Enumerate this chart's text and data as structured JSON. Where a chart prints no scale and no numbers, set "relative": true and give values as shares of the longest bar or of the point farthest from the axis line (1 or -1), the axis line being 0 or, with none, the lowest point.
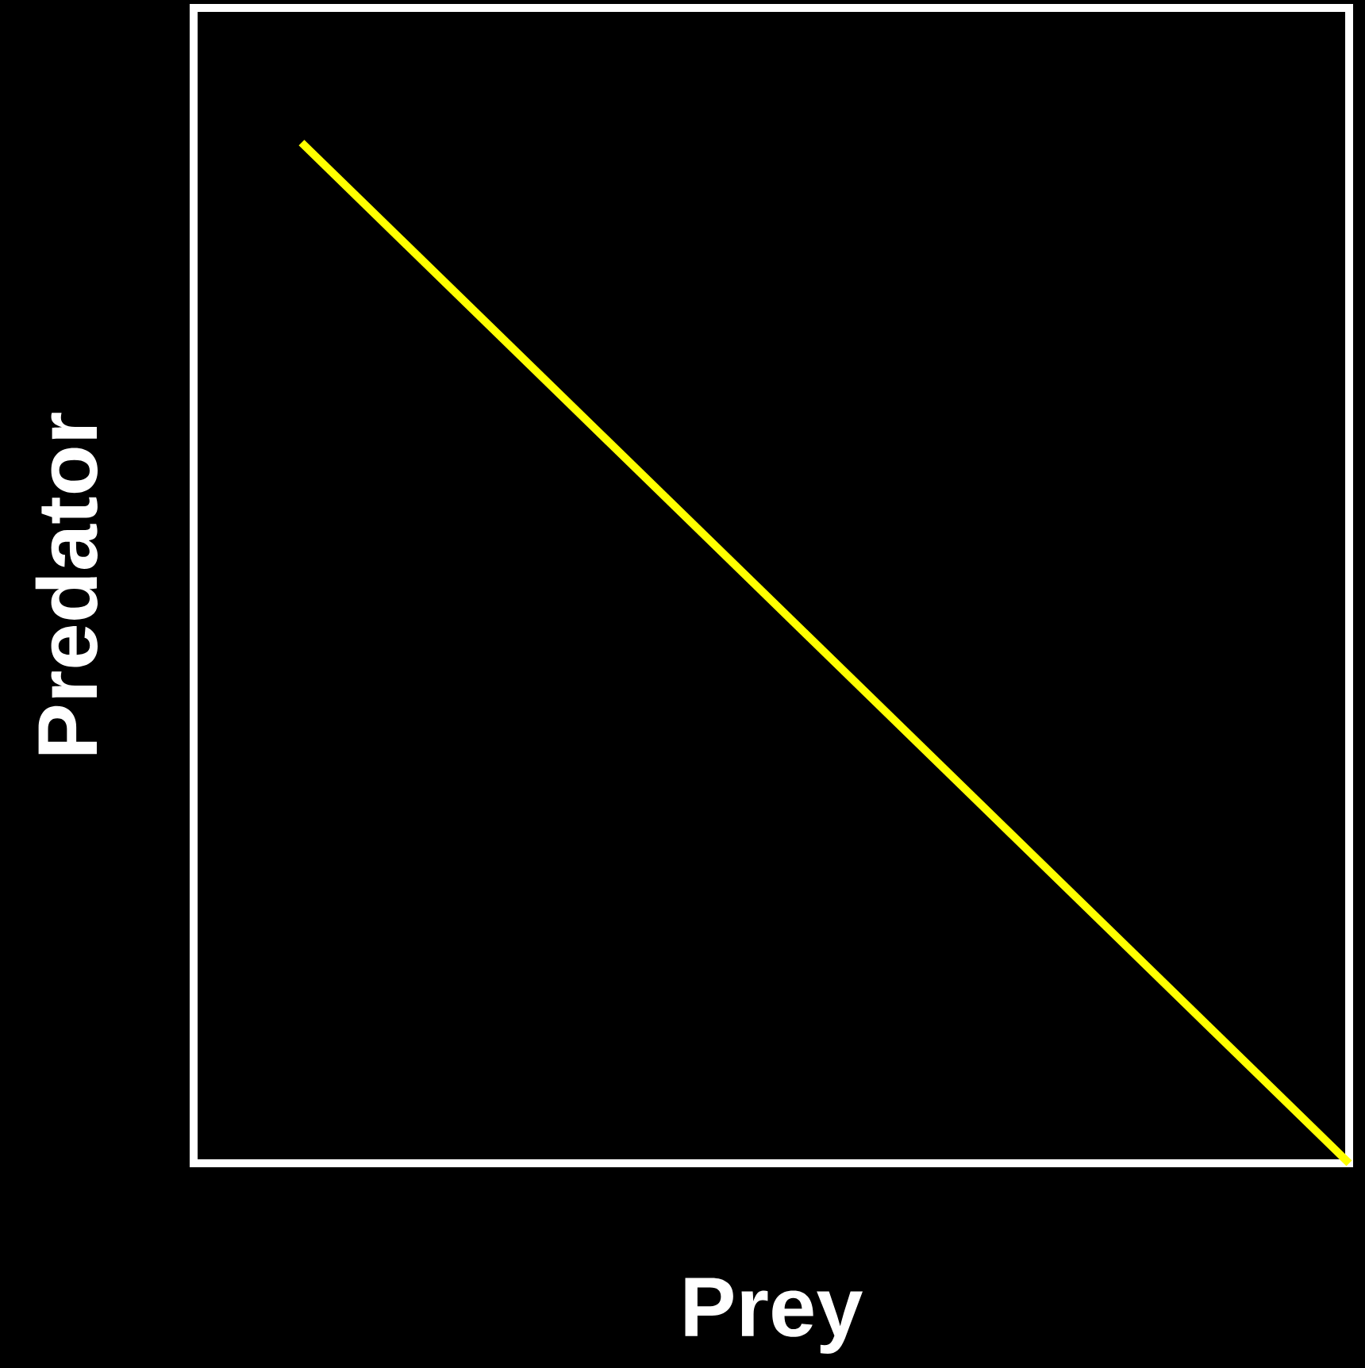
{
  "chart_data": {
    "type": "line",
    "relative": true,
    "xlabel": "Prey",
    "ylabel": "Predator",
    "categories": [
      null,
      null
    ],
    "series": [
      {
        "color": "#ffff00",
        "values": [
          1,
          0
        ]
      }
    ]
  }
}
